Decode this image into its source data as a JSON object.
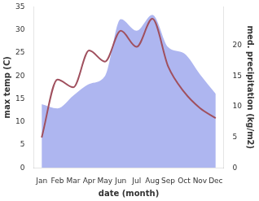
{
  "chart_data": {
    "type": "line",
    "x_label": "date (month)",
    "y_label": "max temp (C)",
    "y2_label": "med. precipitation (kg/m2)",
    "categories": [
      "Jan",
      "Feb",
      "Mar",
      "Apr",
      "May",
      "Jun",
      "Jul",
      "Aug",
      "Sep",
      "Oct",
      "Nov",
      "Dec"
    ],
    "series": [
      {
        "type": "area",
        "color": "#aeb6f0",
        "axis": "y2",
        "values": [
          10.4,
          9.7,
          11.8,
          13.7,
          15,
          24.3,
          22.4,
          25,
          19.7,
          18.7,
          15.3,
          12.1
        ]
      },
      {
        "type": "line",
        "color": "#a0505e",
        "values": [
          6.6,
          19.2,
          17.5,
          25.5,
          23.1,
          29.8,
          26.3,
          32.4,
          22,
          16.5,
          13,
          10.8
        ]
      }
    ],
    "ylim": [
      0,
      35
    ],
    "yticks": [
      0,
      5,
      10,
      15,
      20,
      25,
      30,
      35
    ],
    "y2lim": [
      0,
      26.3
    ],
    "y2ticks": [
      0,
      5,
      10,
      15,
      20
    ],
    "grid": false
  }
}
